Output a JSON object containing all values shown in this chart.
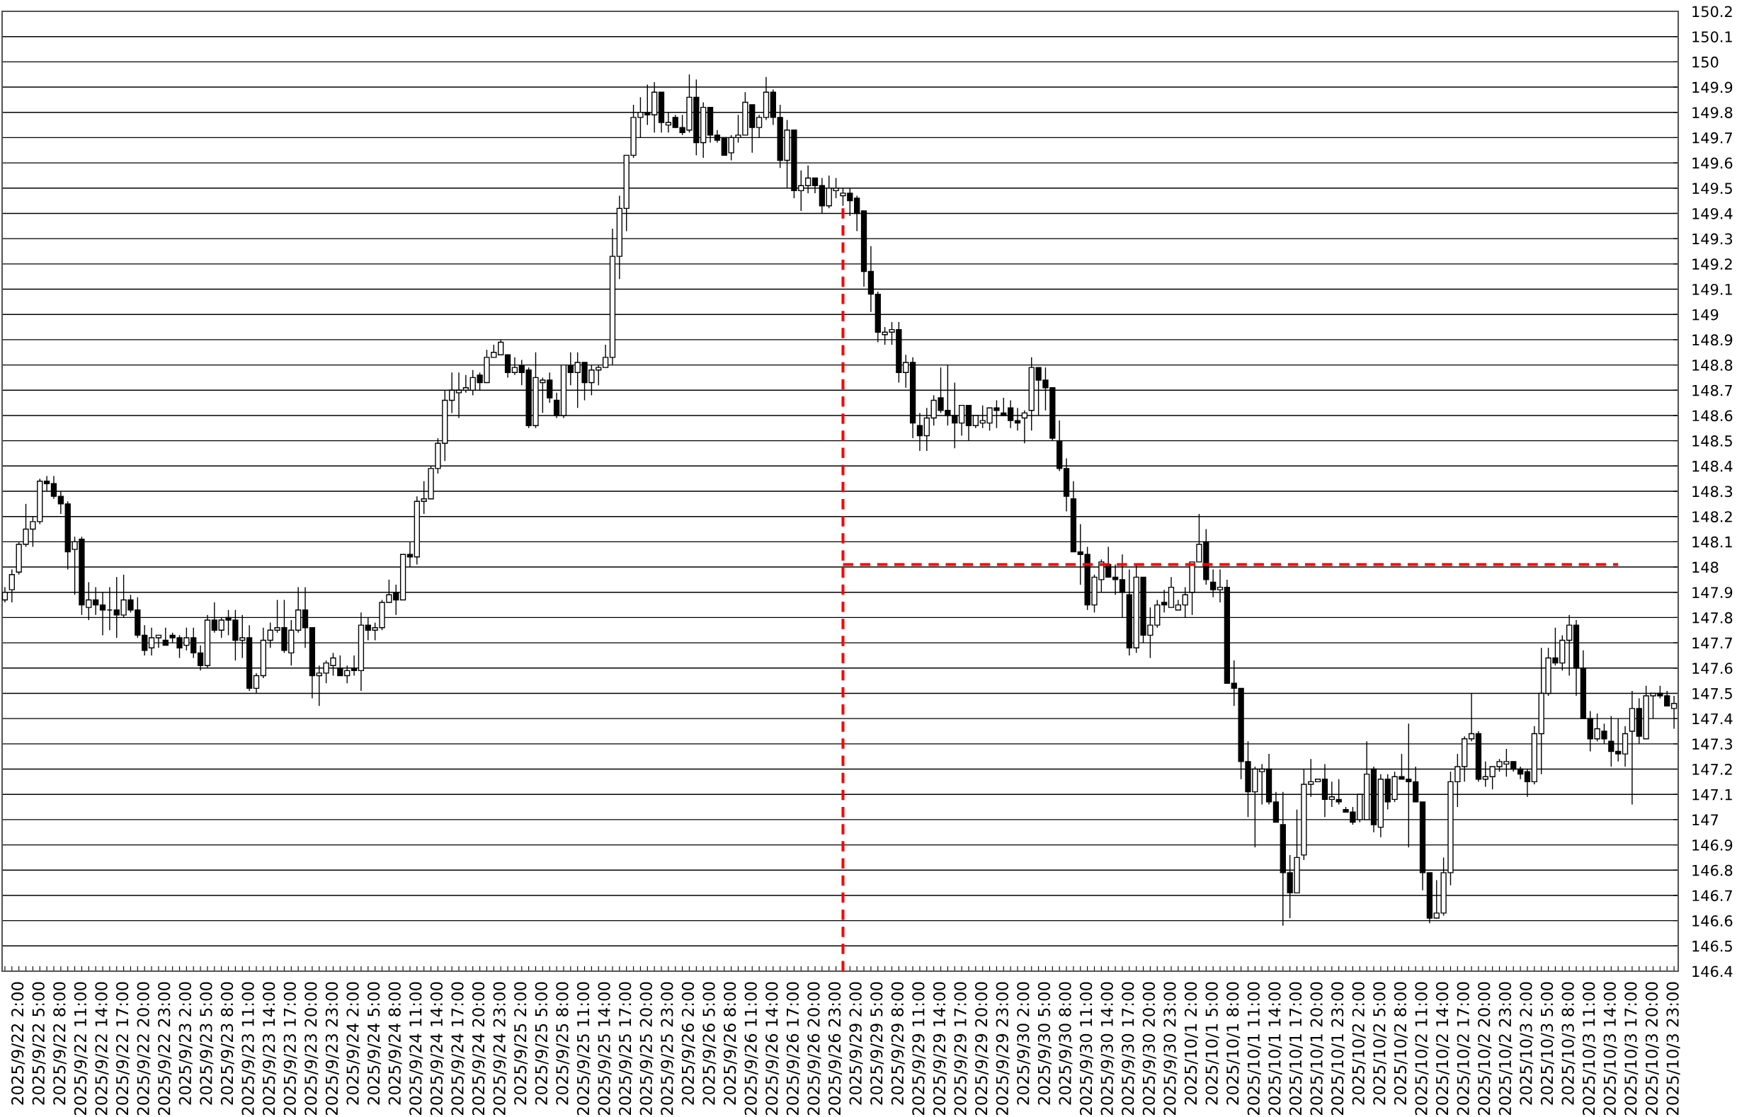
{
  "chart_data": {
    "type": "candlestick",
    "categories": [
      null,
      null,
      "2025/9/22 2:00",
      null,
      null,
      "2025/9/22 5:00",
      null,
      null,
      "2025/9/22 8:00",
      null,
      null,
      "2025/9/22 11:00",
      null,
      null,
      "2025/9/22 14:00",
      null,
      null,
      "2025/9/22 17:00",
      null,
      null,
      "2025/9/22 20:00",
      null,
      null,
      "2025/9/22 23:00",
      null,
      null,
      "2025/9/23 2:00",
      null,
      null,
      "2025/9/23 5:00",
      null,
      null,
      "2025/9/23 8:00",
      null,
      null,
      "2025/9/23 11:00",
      null,
      null,
      "2025/9/23 14:00",
      null,
      null,
      "2025/9/23 17:00",
      null,
      null,
      "2025/9/23 20:00",
      null,
      null,
      "2025/9/23 23:00",
      null,
      null,
      "2025/9/24 2:00",
      null,
      null,
      "2025/9/24 5:00",
      null,
      null,
      "2025/9/24 8:00",
      null,
      null,
      "2025/9/24 11:00",
      null,
      null,
      "2025/9/24 14:00",
      null,
      null,
      "2025/9/24 17:00",
      null,
      null,
      "2025/9/24 20:00",
      null,
      null,
      "2025/9/24 23:00",
      null,
      null,
      "2025/9/25 2:00",
      null,
      null,
      "2025/9/25 5:00",
      null,
      null,
      "2025/9/25 8:00",
      null,
      null,
      "2025/9/25 11:00",
      null,
      null,
      "2025/9/25 14:00",
      null,
      null,
      "2025/9/25 17:00",
      null,
      null,
      "2025/9/25 20:00",
      null,
      null,
      "2025/9/25 23:00",
      null,
      null,
      "2025/9/26 2:00",
      null,
      null,
      "2025/9/26 5:00",
      null,
      null,
      "2025/9/26 8:00",
      null,
      null,
      "2025/9/26 11:00",
      null,
      null,
      "2025/9/26 14:00",
      null,
      null,
      "2025/9/26 17:00",
      null,
      null,
      "2025/9/26 20:00",
      null,
      null,
      "2025/9/26 23:00",
      null,
      null,
      "2025/9/29 2:00",
      null,
      null,
      "2025/9/29 5:00",
      null,
      null,
      "2025/9/29 8:00",
      null,
      null,
      "2025/9/29 11:00",
      null,
      null,
      "2025/9/29 14:00",
      null,
      null,
      "2025/9/29 17:00",
      null,
      null,
      "2025/9/29 20:00",
      null,
      null,
      "2025/9/29 23:00",
      null,
      null,
      "2025/9/30 2:00",
      null,
      null,
      "2025/9/30 5:00",
      null,
      null,
      "2025/9/30 8:00",
      null,
      null,
      "2025/9/30 11:00",
      null,
      null,
      "2025/9/30 14:00",
      null,
      null,
      "2025/9/30 17:00",
      null,
      null,
      "2025/9/30 20:00",
      null,
      null,
      "2025/9/30 23:00",
      null,
      null,
      "2025/10/1 2:00",
      null,
      null,
      "2025/10/1 5:00",
      null,
      null,
      "2025/10/1 8:00",
      null,
      null,
      "2025/10/1 11:00",
      null,
      null,
      "2025/10/1 14:00",
      null,
      null,
      "2025/10/1 17:00",
      null,
      null,
      "2025/10/1 20:00",
      null,
      null,
      "2025/10/1 23:00",
      null,
      null,
      "2025/10/2 2:00",
      null,
      null,
      "2025/10/2 5:00",
      null,
      null,
      "2025/10/2 8:00",
      null,
      null,
      "2025/10/2 11:00",
      null,
      null,
      "2025/10/2 14:00",
      null,
      null,
      "2025/10/2 17:00",
      null,
      null,
      "2025/10/2 20:00",
      null,
      null,
      "2025/10/2 23:00",
      null,
      null,
      "2025/10/3 2:00",
      null,
      null,
      "2025/10/3 5:00",
      null,
      null,
      "2025/10/3 8:00",
      null,
      null,
      "2025/10/3 11:00",
      null,
      null,
      "2025/10/3 14:00",
      null,
      null,
      "2025/10/3 17:00",
      null,
      null,
      "2025/10/3 20:00",
      null,
      null,
      "2025/10/3 23:00"
    ],
    "ohlc": [
      [
        147.87,
        147.92,
        147.86,
        147.9
      ],
      [
        147.91,
        147.99,
        147.86,
        147.97
      ],
      [
        147.98,
        148.1,
        147.97,
        148.09
      ],
      [
        148.09,
        148.25,
        148.08,
        148.15
      ],
      [
        148.15,
        148.2,
        148.08,
        148.18
      ],
      [
        148.18,
        148.35,
        148.17,
        148.34
      ],
      [
        148.34,
        148.36,
        148.3,
        148.33
      ],
      [
        148.33,
        148.36,
        148.27,
        148.28
      ],
      [
        148.28,
        148.3,
        148.21,
        148.25
      ],
      [
        148.25,
        148.26,
        147.99,
        148.06
      ],
      [
        148.07,
        148.12,
        147.89,
        148.1
      ],
      [
        148.11,
        148.12,
        147.81,
        147.85
      ],
      [
        147.84,
        147.94,
        147.79,
        147.87
      ],
      [
        147.87,
        147.92,
        147.81,
        147.85
      ],
      [
        147.85,
        147.9,
        147.73,
        147.83
      ],
      [
        147.83,
        147.92,
        147.75,
        147.83
      ],
      [
        147.83,
        147.96,
        147.72,
        147.81
      ],
      [
        147.81,
        147.97,
        147.8,
        147.87
      ],
      [
        147.87,
        147.89,
        147.82,
        147.83
      ],
      [
        147.83,
        147.88,
        147.72,
        147.73
      ],
      [
        147.73,
        147.77,
        147.65,
        147.67
      ],
      [
        147.68,
        147.76,
        147.65,
        147.72
      ],
      [
        147.72,
        147.73,
        147.68,
        147.73
      ],
      [
        147.71,
        147.76,
        147.69,
        147.69
      ],
      [
        147.73,
        147.74,
        147.7,
        147.72
      ],
      [
        147.72,
        147.73,
        147.64,
        147.68
      ],
      [
        147.69,
        147.76,
        147.67,
        147.72
      ],
      [
        147.72,
        147.76,
        147.64,
        147.66
      ],
      [
        147.66,
        147.69,
        147.59,
        147.61
      ],
      [
        147.61,
        147.81,
        147.6,
        147.79
      ],
      [
        147.79,
        147.86,
        147.74,
        147.75
      ],
      [
        147.75,
        147.8,
        147.72,
        147.79
      ],
      [
        147.8,
        147.83,
        147.73,
        147.79
      ],
      [
        147.79,
        147.83,
        147.63,
        147.71
      ],
      [
        147.71,
        147.81,
        147.64,
        147.72
      ],
      [
        147.72,
        147.77,
        147.51,
        147.52
      ],
      [
        147.52,
        147.58,
        147.5,
        147.57
      ],
      [
        147.57,
        147.76,
        147.56,
        147.71
      ],
      [
        147.71,
        147.78,
        147.68,
        147.75
      ],
      [
        147.75,
        147.87,
        147.74,
        147.76
      ],
      [
        147.76,
        147.87,
        147.66,
        147.67
      ],
      [
        147.66,
        147.79,
        147.61,
        147.75
      ],
      [
        147.75,
        147.92,
        147.74,
        147.83
      ],
      [
        147.83,
        147.92,
        147.68,
        147.76
      ],
      [
        147.76,
        147.76,
        147.48,
        147.57
      ],
      [
        147.57,
        147.61,
        147.45,
        147.58
      ],
      [
        147.58,
        147.63,
        147.54,
        147.62
      ],
      [
        147.61,
        147.66,
        147.57,
        147.64
      ],
      [
        147.6,
        147.65,
        147.57,
        147.57
      ],
      [
        147.57,
        147.61,
        147.54,
        147.59
      ],
      [
        147.6,
        147.65,
        147.57,
        147.59
      ],
      [
        147.59,
        147.82,
        147.51,
        147.77
      ],
      [
        147.77,
        147.8,
        147.71,
        147.75
      ],
      [
        147.75,
        147.78,
        147.71,
        147.76
      ],
      [
        147.76,
        147.87,
        147.75,
        147.86
      ],
      [
        147.86,
        147.95,
        147.86,
        147.89
      ],
      [
        147.9,
        147.93,
        147.81,
        147.87
      ],
      [
        147.87,
        148.05,
        147.87,
        148.05
      ],
      [
        148.05,
        148.1,
        148.0,
        148.04
      ],
      [
        148.04,
        148.28,
        148.01,
        148.26
      ],
      [
        148.26,
        148.34,
        148.21,
        148.27
      ],
      [
        148.27,
        148.4,
        148.27,
        148.39
      ],
      [
        148.39,
        148.51,
        148.37,
        148.49
      ],
      [
        148.49,
        148.7,
        148.42,
        148.66
      ],
      [
        148.66,
        148.77,
        148.61,
        148.7
      ],
      [
        148.69,
        148.77,
        148.59,
        148.7
      ],
      [
        148.7,
        148.76,
        148.69,
        148.71
      ],
      [
        148.7,
        148.78,
        148.68,
        148.75
      ],
      [
        148.76,
        148.77,
        148.7,
        148.73
      ],
      [
        148.73,
        148.86,
        148.73,
        148.83
      ],
      [
        148.83,
        148.88,
        148.83,
        148.85
      ],
      [
        148.84,
        148.9,
        148.84,
        148.89
      ],
      [
        148.84,
        148.84,
        148.75,
        148.77
      ],
      [
        148.77,
        148.83,
        148.76,
        148.79
      ],
      [
        148.8,
        148.82,
        148.72,
        148.77
      ],
      [
        148.78,
        148.79,
        148.55,
        148.56
      ],
      [
        148.56,
        148.85,
        148.55,
        148.75
      ],
      [
        148.73,
        148.75,
        148.61,
        148.74
      ],
      [
        148.74,
        148.77,
        148.65,
        148.67
      ],
      [
        148.66,
        148.69,
        148.59,
        148.6
      ],
      [
        148.6,
        148.8,
        148.59,
        148.8
      ],
      [
        148.8,
        148.85,
        148.72,
        148.77
      ],
      [
        148.77,
        148.85,
        148.63,
        148.81
      ],
      [
        148.81,
        148.81,
        148.66,
        148.73
      ],
      [
        148.73,
        148.8,
        148.68,
        148.78
      ],
      [
        148.78,
        148.8,
        148.72,
        148.79
      ],
      [
        148.79,
        148.88,
        148.79,
        148.83
      ],
      [
        148.83,
        149.34,
        148.8,
        149.23
      ],
      [
        149.23,
        149.47,
        149.14,
        149.42
      ],
      [
        149.42,
        149.63,
        149.33,
        149.63
      ],
      [
        149.63,
        149.83,
        149.62,
        149.78
      ],
      [
        149.78,
        149.86,
        149.7,
        149.8
      ],
      [
        149.8,
        149.91,
        149.75,
        149.79
      ],
      [
        149.79,
        149.92,
        149.72,
        149.88
      ],
      [
        149.88,
        149.88,
        149.72,
        149.76
      ],
      [
        149.75,
        149.8,
        149.72,
        149.76
      ],
      [
        149.78,
        149.79,
        149.74,
        149.74
      ],
      [
        149.74,
        149.79,
        149.71,
        149.72
      ],
      [
        149.73,
        149.95,
        149.72,
        149.86
      ],
      [
        149.86,
        149.93,
        149.63,
        149.68
      ],
      [
        149.68,
        149.84,
        149.62,
        149.82
      ],
      [
        149.82,
        149.82,
        149.68,
        149.71
      ],
      [
        149.71,
        149.73,
        149.68,
        149.69
      ],
      [
        149.7,
        149.7,
        149.63,
        149.63
      ],
      [
        149.64,
        149.71,
        149.61,
        149.7
      ],
      [
        149.7,
        149.79,
        149.68,
        149.71
      ],
      [
        149.71,
        149.88,
        149.71,
        149.84
      ],
      [
        149.83,
        149.83,
        149.64,
        149.74
      ],
      [
        149.74,
        149.79,
        149.7,
        149.78
      ],
      [
        149.78,
        149.94,
        149.77,
        149.88
      ],
      [
        149.88,
        149.89,
        149.75,
        149.78
      ],
      [
        149.78,
        149.83,
        149.58,
        149.61
      ],
      [
        149.61,
        149.77,
        149.5,
        149.73
      ],
      [
        149.73,
        149.73,
        149.46,
        149.49
      ],
      [
        149.49,
        149.57,
        149.41,
        149.51
      ],
      [
        149.51,
        149.59,
        149.48,
        149.54
      ],
      [
        149.54,
        149.54,
        149.48,
        149.51
      ],
      [
        149.51,
        149.54,
        149.4,
        149.43
      ],
      [
        149.43,
        149.55,
        149.42,
        149.5
      ],
      [
        149.49,
        149.54,
        149.46,
        149.5
      ],
      [
        149.47,
        149.5,
        149.43,
        149.48
      ],
      [
        149.48,
        149.5,
        149.39,
        149.45
      ],
      [
        149.46,
        149.47,
        149.33,
        149.4
      ],
      [
        149.41,
        149.41,
        149.11,
        149.17
      ],
      [
        149.17,
        149.27,
        149.01,
        149.08
      ],
      [
        149.08,
        149.09,
        148.89,
        148.93
      ],
      [
        148.92,
        148.95,
        148.88,
        148.93
      ],
      [
        148.93,
        148.97,
        148.88,
        148.94
      ],
      [
        148.94,
        148.97,
        148.73,
        148.77
      ],
      [
        148.77,
        148.84,
        148.71,
        148.81
      ],
      [
        148.81,
        148.83,
        148.51,
        148.57
      ],
      [
        148.56,
        148.61,
        148.46,
        148.52
      ],
      [
        148.52,
        148.63,
        148.46,
        148.59
      ],
      [
        148.59,
        148.68,
        148.56,
        148.66
      ],
      [
        148.67,
        148.79,
        148.61,
        148.62
      ],
      [
        148.62,
        148.8,
        148.56,
        148.6
      ],
      [
        148.6,
        148.73,
        148.47,
        148.57
      ],
      [
        148.57,
        148.64,
        148.52,
        148.64
      ],
      [
        148.64,
        148.64,
        148.5,
        148.56
      ],
      [
        148.56,
        148.6,
        148.55,
        148.6
      ],
      [
        148.57,
        148.64,
        148.55,
        148.58
      ],
      [
        148.57,
        148.63,
        148.54,
        148.63
      ],
      [
        148.63,
        148.66,
        148.55,
        148.62
      ],
      [
        148.61,
        148.67,
        148.6,
        148.6
      ],
      [
        148.63,
        148.66,
        148.55,
        148.58
      ],
      [
        148.58,
        148.63,
        148.54,
        148.57
      ],
      [
        148.59,
        148.62,
        148.49,
        148.61
      ],
      [
        148.62,
        148.83,
        148.54,
        148.79
      ],
      [
        148.79,
        148.79,
        148.6,
        148.74
      ],
      [
        148.74,
        148.79,
        148.62,
        148.71
      ],
      [
        148.71,
        148.71,
        148.5,
        148.51
      ],
      [
        148.5,
        148.58,
        148.38,
        148.39
      ],
      [
        148.39,
        148.43,
        148.22,
        148.28
      ],
      [
        148.27,
        148.34,
        148.06,
        148.06
      ],
      [
        148.06,
        148.17,
        147.93,
        148.05
      ],
      [
        148.05,
        148.08,
        147.83,
        147.85
      ],
      [
        147.85,
        147.97,
        147.82,
        147.96
      ],
      [
        147.95,
        148.03,
        147.9,
        148.02
      ],
      [
        148.01,
        148.08,
        147.96,
        147.96
      ],
      [
        147.96,
        148.01,
        147.89,
        147.95
      ],
      [
        147.95,
        148.05,
        147.8,
        147.9
      ],
      [
        147.89,
        147.99,
        147.65,
        147.68
      ],
      [
        147.68,
        148.01,
        147.66,
        147.96
      ],
      [
        147.96,
        147.96,
        147.7,
        147.73
      ],
      [
        147.73,
        147.84,
        147.64,
        147.77
      ],
      [
        147.77,
        147.87,
        147.76,
        147.85
      ],
      [
        147.86,
        147.91,
        147.82,
        147.85
      ],
      [
        147.84,
        147.96,
        147.84,
        147.92
      ],
      [
        147.83,
        147.87,
        147.83,
        147.85
      ],
      [
        147.85,
        147.92,
        147.8,
        147.89
      ],
      [
        147.9,
        148.02,
        147.81,
        148.02
      ],
      [
        148.02,
        148.21,
        148.02,
        148.09
      ],
      [
        148.1,
        148.15,
        147.93,
        147.95
      ],
      [
        147.94,
        147.99,
        147.88,
        147.91
      ],
      [
        147.91,
        147.99,
        147.86,
        147.92
      ],
      [
        147.92,
        147.95,
        147.54,
        147.54
      ],
      [
        147.54,
        147.63,
        147.45,
        147.52
      ],
      [
        147.52,
        147.52,
        147.16,
        147.23
      ],
      [
        147.23,
        147.31,
        147.01,
        147.11
      ],
      [
        147.11,
        147.21,
        146.89,
        147.2
      ],
      [
        147.19,
        147.22,
        147.06,
        147.2
      ],
      [
        147.2,
        147.26,
        147.06,
        147.07
      ],
      [
        147.07,
        147.11,
        146.99,
        146.99
      ],
      [
        146.98,
        147.11,
        146.58,
        146.79
      ],
      [
        146.79,
        146.86,
        146.61,
        146.71
      ],
      [
        146.71,
        147.04,
        146.71,
        146.85
      ],
      [
        146.86,
        147.2,
        146.84,
        147.14
      ],
      [
        147.14,
        147.24,
        147.09,
        147.15
      ],
      [
        147.15,
        147.16,
        147.15,
        147.16
      ],
      [
        147.16,
        147.22,
        147.01,
        147.08
      ],
      [
        147.08,
        147.15,
        147.05,
        147.09
      ],
      [
        147.08,
        147.16,
        147.06,
        147.07
      ],
      [
        147.04,
        147.05,
        147.03,
        147.03
      ],
      [
        147.03,
        147.05,
        146.98,
        146.99
      ],
      [
        147.0,
        147.1,
        146.99,
        147.1
      ],
      [
        147.0,
        147.31,
        147.0,
        147.18
      ],
      [
        147.2,
        147.21,
        146.95,
        146.98
      ],
      [
        146.97,
        147.18,
        146.93,
        147.16
      ],
      [
        147.16,
        147.18,
        147.04,
        147.07
      ],
      [
        147.08,
        147.19,
        147.07,
        147.17
      ],
      [
        147.17,
        147.26,
        147.16,
        147.16
      ],
      [
        147.16,
        147.38,
        146.89,
        147.15
      ],
      [
        147.15,
        147.21,
        147.07,
        147.07
      ],
      [
        147.07,
        147.07,
        146.72,
        146.79
      ],
      [
        146.79,
        146.79,
        146.59,
        146.61
      ],
      [
        146.61,
        146.76,
        146.61,
        146.63
      ],
      [
        146.63,
        146.85,
        146.62,
        146.79
      ],
      [
        146.79,
        147.19,
        146.74,
        147.15
      ],
      [
        147.15,
        147.26,
        147.05,
        147.21
      ],
      [
        147.21,
        147.33,
        147.15,
        147.32
      ],
      [
        147.32,
        147.5,
        147.31,
        147.34
      ],
      [
        147.34,
        147.35,
        147.15,
        147.16
      ],
      [
        147.16,
        147.23,
        147.13,
        147.17
      ],
      [
        147.17,
        147.21,
        147.12,
        147.21
      ],
      [
        147.21,
        147.24,
        147.19,
        147.23
      ],
      [
        147.22,
        147.28,
        147.17,
        147.23
      ],
      [
        147.23,
        147.23,
        147.19,
        147.2
      ],
      [
        147.2,
        147.21,
        147.16,
        147.18
      ],
      [
        147.19,
        147.2,
        147.09,
        147.15
      ],
      [
        147.15,
        147.37,
        147.14,
        147.34
      ],
      [
        147.34,
        147.68,
        147.18,
        147.5
      ],
      [
        147.5,
        147.68,
        147.49,
        147.64
      ],
      [
        147.64,
        147.76,
        147.61,
        147.62
      ],
      [
        147.62,
        147.73,
        147.59,
        147.71
      ],
      [
        147.71,
        147.81,
        147.57,
        147.77
      ],
      [
        147.77,
        147.79,
        147.49,
        147.6
      ],
      [
        147.6,
        147.67,
        147.4,
        147.4
      ],
      [
        147.4,
        147.43,
        147.27,
        147.32
      ],
      [
        147.32,
        147.42,
        147.31,
        147.36
      ],
      [
        147.35,
        147.38,
        147.3,
        147.32
      ],
      [
        147.31,
        147.41,
        147.21,
        147.27
      ],
      [
        147.27,
        147.4,
        147.23,
        147.26
      ],
      [
        147.26,
        147.37,
        147.21,
        147.34
      ],
      [
        147.35,
        147.51,
        147.06,
        147.44
      ],
      [
        147.44,
        147.48,
        147.3,
        147.33
      ],
      [
        147.32,
        147.53,
        147.32,
        147.49
      ],
      [
        147.49,
        147.5,
        147.4,
        147.5
      ],
      [
        147.5,
        147.53,
        147.48,
        147.49
      ],
      [
        147.49,
        147.51,
        147.45,
        147.45
      ],
      [
        147.44,
        147.49,
        147.36,
        147.46
      ]
    ],
    "color": "#000000",
    "ylim": [
      146.4,
      150.2
    ],
    "yticks": [
      146.4,
      146.5,
      146.6,
      146.7,
      146.8,
      146.9,
      147,
      147.1,
      147.2,
      147.3,
      147.4,
      147.5,
      147.6,
      147.7,
      147.8,
      147.9,
      148,
      148.1,
      148.2,
      148.3,
      148.4,
      148.5,
      148.6,
      148.7,
      148.8,
      148.9,
      149,
      149.1,
      149.2,
      149.3,
      149.4,
      149.5,
      149.6,
      149.7,
      149.8,
      149.9,
      150,
      150.1,
      150.2
    ],
    "grid": "y",
    "series": [
      {
        "type": "line",
        "color": "#ff0000",
        "line_style": "dashed",
        "values": [
          null,
          null,
          null,
          null,
          null,
          null,
          null,
          null,
          null,
          null,
          null,
          null,
          null,
          null,
          null,
          null,
          null,
          null,
          null,
          null,
          null,
          null,
          null,
          null,
          null,
          null,
          null,
          null,
          null,
          null,
          null,
          null,
          null,
          null,
          null,
          null,
          null,
          null,
          null,
          null,
          null,
          null,
          null,
          null,
          null,
          null,
          null,
          null,
          null,
          null,
          null,
          null,
          null,
          null,
          null,
          null,
          null,
          null,
          null,
          null,
          null,
          null,
          null,
          null,
          null,
          null,
          null,
          null,
          null,
          null,
          null,
          null,
          null,
          null,
          null,
          null,
          null,
          null,
          null,
          null,
          null,
          null,
          null,
          null,
          null,
          null,
          null,
          null,
          null,
          null,
          null,
          null,
          null,
          null,
          null,
          null,
          null,
          null,
          null,
          null,
          null,
          null,
          null,
          null,
          null,
          null,
          null,
          null,
          null,
          null,
          null,
          null,
          null,
          null,
          null,
          null,
          null,
          null,
          null,
          null,
          148.01,
          148.01,
          148.01,
          148.01,
          148.01,
          148.01,
          148.01,
          148.01,
          148.01,
          148.01,
          148.01,
          148.01,
          148.01,
          148.01,
          148.01,
          148.01,
          148.01,
          148.01,
          148.01,
          148.01,
          148.01,
          148.01,
          148.01,
          148.01,
          148.01,
          148.01,
          148.01,
          148.01,
          148.01,
          148.01,
          148.01,
          148.01,
          148.01,
          148.01,
          148.01,
          148.01,
          148.01,
          148.01,
          148.01,
          148.01,
          148.01,
          148.01,
          148.01,
          148.01,
          148.01,
          148.01,
          148.01,
          148.01,
          148.01,
          148.01,
          148.01,
          148.01,
          148.01,
          148.01,
          148.01,
          148.01,
          148.01,
          148.01,
          148.01,
          148.01,
          148.01,
          148.01,
          148.01,
          148.01,
          148.01,
          148.01,
          148.01,
          148.01,
          148.01,
          148.01,
          148.01,
          148.01,
          148.01,
          148.01,
          148.01,
          148.01,
          148.01,
          148.01,
          148.01,
          148.01,
          148.01,
          148.01,
          148.01,
          148.01,
          148.01,
          148.01,
          148.01,
          148.01,
          148.01,
          148.01,
          148.01,
          148.01,
          148.01,
          148.01,
          148.01,
          148.01,
          148.01,
          148.01,
          148.01,
          148.01,
          148.01,
          148.01,
          148.01,
          148.01,
          148.01,
          148.01,
          148.01,
          148.01,
          148.01,
          148.01,
          148.01,
          148.01,
          null,
          null,
          null,
          null,
          null,
          null,
          null,
          null
        ]
      }
    ]
  }
}
